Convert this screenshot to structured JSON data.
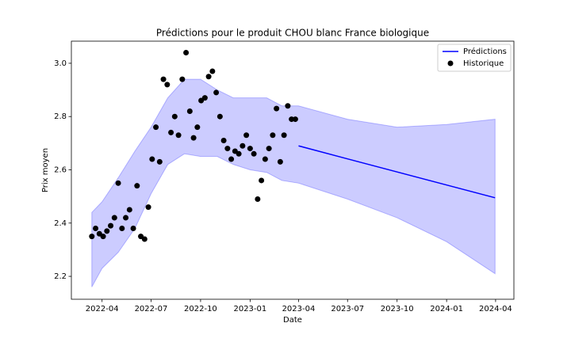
{
  "chart_data": {
    "type": "line",
    "title": "Prédictions pour le produit CHOU blanc France biologique",
    "xlabel": "Date",
    "ylabel": "Prix moyen",
    "xlim": [
      "2022-02-03",
      "2024-05-05"
    ],
    "xticks": [
      "2022-04",
      "2022-07",
      "2022-10",
      "2023-01",
      "2023-04",
      "2023-07",
      "2023-10",
      "2024-01",
      "2024-04"
    ],
    "ylim": [
      2.114,
      3.083
    ],
    "yticks": [
      2.2,
      2.4,
      2.6,
      2.8,
      {
        "value": 3,
        "label": "3.0"
      }
    ],
    "legend": "upper right",
    "interval": {
      "color": "#0000ff",
      "x": [
        "2022-03-13",
        "2022-04-01",
        "2022-05-01",
        "2022-06-01",
        "2022-07-01",
        "2022-08-01",
        "2022-09-01",
        "2022-10-01",
        "2022-11-01",
        "2022-12-01",
        "2023-01-01",
        "2023-02-01",
        "2023-03-01",
        "2023-04-01",
        "2023-07-01",
        "2023-10-01",
        "2024-01-01",
        "2024-03-31"
      ],
      "upper": [
        2.44,
        2.48,
        2.57,
        2.67,
        2.76,
        2.87,
        2.94,
        2.94,
        2.9,
        2.87,
        2.87,
        2.87,
        2.84,
        2.84,
        2.79,
        2.76,
        2.77,
        2.79
      ],
      "lower": [
        2.16,
        2.23,
        2.29,
        2.38,
        2.51,
        2.62,
        2.66,
        2.65,
        2.65,
        2.62,
        2.6,
        2.59,
        2.56,
        2.55,
        2.49,
        2.42,
        2.33,
        2.21
      ]
    },
    "series": [
      {
        "name": "Prédictions",
        "color": "#0000ff",
        "kind": "line",
        "x": [
          "2023-04-01",
          "2023-07-01",
          "2023-10-01",
          "2024-01-01",
          "2024-03-31"
        ],
        "values": [
          2.69,
          2.641,
          2.592,
          2.543,
          2.495
        ]
      },
      {
        "name": "Historique",
        "color": "#000000",
        "kind": "scatter",
        "x": [
          "2022-03-13",
          "2022-03-20",
          "2022-03-27",
          "2022-04-03",
          "2022-04-10",
          "2022-04-17",
          "2022-04-24",
          "2022-05-01",
          "2022-05-08",
          "2022-05-15",
          "2022-05-22",
          "2022-05-29",
          "2022-06-05",
          "2022-06-12",
          "2022-06-19",
          "2022-06-26",
          "2022-07-03",
          "2022-07-10",
          "2022-07-17",
          "2022-07-24",
          "2022-07-31",
          "2022-08-07",
          "2022-08-14",
          "2022-08-21",
          "2022-08-28",
          "2022-09-04",
          "2022-09-11",
          "2022-09-18",
          "2022-09-25",
          "2022-10-02",
          "2022-10-09",
          "2022-10-16",
          "2022-10-23",
          "2022-10-30",
          "2022-11-06",
          "2022-11-13",
          "2022-11-20",
          "2022-11-27",
          "2022-12-04",
          "2022-12-11",
          "2022-12-18",
          "2022-12-25",
          "2023-01-01",
          "2023-01-08",
          "2023-01-15",
          "2023-01-22",
          "2023-01-29",
          "2023-02-05",
          "2023-02-12",
          "2023-02-19",
          "2023-02-26",
          "2023-03-05",
          "2023-03-12",
          "2023-03-19",
          "2023-03-26"
        ],
        "values": [
          2.35,
          2.38,
          2.36,
          2.35,
          2.37,
          2.39,
          2.42,
          2.55,
          2.38,
          2.42,
          2.45,
          2.38,
          2.54,
          2.35,
          2.34,
          2.46,
          2.64,
          2.76,
          2.63,
          2.94,
          2.92,
          2.74,
          2.8,
          2.73,
          2.94,
          3.04,
          2.82,
          2.72,
          2.76,
          2.86,
          2.87,
          2.95,
          2.97,
          2.89,
          2.8,
          2.71,
          2.68,
          2.64,
          2.67,
          2.66,
          2.69,
          2.73,
          2.68,
          2.66,
          2.49,
          2.56,
          2.64,
          2.68,
          2.73,
          2.83,
          2.63,
          2.73,
          2.84,
          2.79,
          2.79
        ]
      }
    ]
  }
}
